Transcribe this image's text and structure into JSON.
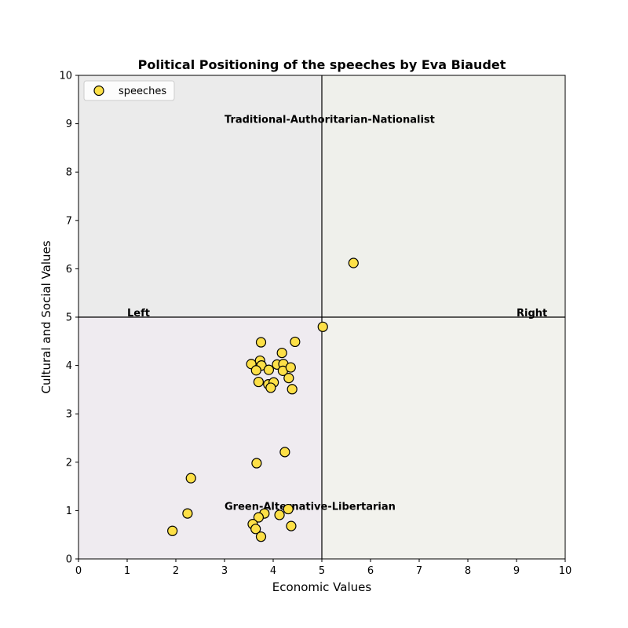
{
  "chart_data": {
    "type": "scatter",
    "title": "Political Positioning of the speeches by Eva Biaudet",
    "xlabel": "Economic Values",
    "ylabel": "Cultural and Social Values",
    "xlim": [
      0,
      10
    ],
    "ylim": [
      0,
      10
    ],
    "xticks": [
      "0",
      "1",
      "2",
      "3",
      "4",
      "5",
      "6",
      "7",
      "8",
      "9",
      "10"
    ],
    "yticks": [
      "0",
      "1",
      "2",
      "3",
      "4",
      "5",
      "6",
      "7",
      "8",
      "9",
      "10"
    ],
    "grid": false,
    "legend_position": "top-left",
    "quadrant_lines": {
      "x": 5,
      "y": 5
    },
    "quadrant_colors": {
      "top_left": "#ebebeb",
      "top_right": "#eff0eb",
      "bottom_left": "#efebf0",
      "bottom_right": "#f2f2ed"
    },
    "annotations": [
      {
        "text": "Traditional-Authoritarian-Nationalist",
        "x": 3.0,
        "y": 9.0
      },
      {
        "text": "Green-Alternative-Libertarian",
        "x": 3.0,
        "y": 1.0
      },
      {
        "text": "Left",
        "x": 1.0,
        "y": 5.0
      },
      {
        "text": "Right",
        "x": 9.0,
        "y": 5.0
      }
    ],
    "series": [
      {
        "name": "speeches",
        "color": "#fde047",
        "edge_color": "#000000",
        "points": [
          [
            5.65,
            6.12
          ],
          [
            5.02,
            4.8
          ],
          [
            3.75,
            4.48
          ],
          [
            4.45,
            4.49
          ],
          [
            4.18,
            4.26
          ],
          [
            3.73,
            4.1
          ],
          [
            3.55,
            4.03
          ],
          [
            3.76,
            4.0
          ],
          [
            4.08,
            4.02
          ],
          [
            4.21,
            4.03
          ],
          [
            3.65,
            3.9
          ],
          [
            3.91,
            3.91
          ],
          [
            4.2,
            3.89
          ],
          [
            4.36,
            3.96
          ],
          [
            4.32,
            3.74
          ],
          [
            3.7,
            3.66
          ],
          [
            3.9,
            3.61
          ],
          [
            4.01,
            3.65
          ],
          [
            3.95,
            3.54
          ],
          [
            4.39,
            3.51
          ],
          [
            4.24,
            2.21
          ],
          [
            3.66,
            1.98
          ],
          [
            2.31,
            1.67
          ],
          [
            2.24,
            0.94
          ],
          [
            1.93,
            0.58
          ],
          [
            3.82,
            0.94
          ],
          [
            4.31,
            1.03
          ],
          [
            3.7,
            0.86
          ],
          [
            4.13,
            0.91
          ],
          [
            3.58,
            0.72
          ],
          [
            3.64,
            0.62
          ],
          [
            4.37,
            0.68
          ],
          [
            3.75,
            0.46
          ]
        ]
      }
    ]
  }
}
